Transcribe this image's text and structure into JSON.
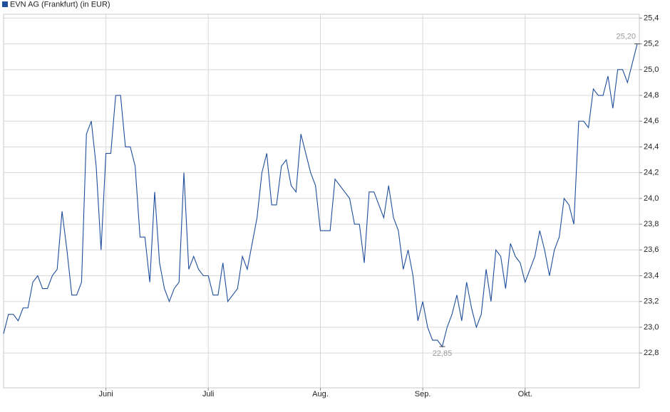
{
  "chart_data": {
    "type": "line",
    "series": [
      {
        "name": "EVN AG (Frankfurt) (in EUR)",
        "color": "#1f4e9c",
        "values": [
          22.95,
          23.1,
          23.1,
          23.05,
          23.15,
          23.15,
          23.35,
          23.4,
          23.3,
          23.3,
          23.4,
          23.45,
          23.9,
          23.6,
          23.25,
          23.25,
          23.35,
          24.5,
          24.6,
          24.25,
          23.6,
          24.35,
          24.35,
          24.8,
          24.8,
          24.4,
          24.4,
          24.25,
          23.7,
          23.7,
          23.35,
          24.05,
          23.5,
          23.3,
          23.2,
          23.3,
          23.35,
          24.2,
          23.45,
          23.55,
          23.45,
          23.4,
          23.4,
          23.25,
          23.25,
          23.5,
          23.2,
          23.25,
          23.3,
          23.55,
          23.45,
          23.65,
          23.85,
          24.2,
          24.35,
          23.95,
          23.95,
          24.25,
          24.3,
          24.1,
          24.05,
          24.5,
          24.35,
          24.2,
          24.1,
          23.75,
          23.75,
          23.75,
          24.15,
          24.1,
          24.05,
          24.0,
          23.8,
          23.8,
          23.5,
          24.05,
          24.05,
          23.95,
          23.85,
          24.1,
          23.85,
          23.75,
          23.45,
          23.6,
          23.4,
          23.05,
          23.2,
          23.0,
          22.9,
          22.9,
          22.85,
          23.0,
          23.1,
          23.25,
          23.05,
          23.35,
          23.15,
          23.0,
          23.1,
          23.45,
          23.2,
          23.6,
          23.55,
          23.3,
          23.65,
          23.55,
          23.5,
          23.35,
          23.45,
          23.55,
          23.75,
          23.6,
          23.4,
          23.6,
          23.7,
          24.0,
          23.95,
          23.8,
          24.6,
          24.6,
          24.55,
          24.85,
          24.8,
          24.8,
          24.95,
          24.7,
          25.0,
          25.0,
          24.9,
          25.05,
          25.2
        ]
      }
    ],
    "xlim": [
      0,
      130
    ],
    "xticks": [
      {
        "value": 21,
        "label": "Juni"
      },
      {
        "value": 42,
        "label": "Juli"
      },
      {
        "value": 65,
        "label": "Aug."
      },
      {
        "value": 86,
        "label": "Sep."
      },
      {
        "value": 107,
        "label": "Okt."
      }
    ],
    "ylim": [
      22.53,
      25.43
    ],
    "yticks": [
      {
        "value": 22.8,
        "label": "22,8"
      },
      {
        "value": 23.0,
        "label": "23,0"
      },
      {
        "value": 23.2,
        "label": "23,2"
      },
      {
        "value": 23.4,
        "label": "23,4"
      },
      {
        "value": 23.6,
        "label": "23,6"
      },
      {
        "value": 23.8,
        "label": "23,8"
      },
      {
        "value": 24.0,
        "label": "24,0"
      },
      {
        "value": 24.2,
        "label": "24,2"
      },
      {
        "value": 24.4,
        "label": "24,4"
      },
      {
        "value": 24.6,
        "label": "24,6"
      },
      {
        "value": 24.8,
        "label": "24,8"
      },
      {
        "value": 25.0,
        "label": "25,0"
      },
      {
        "value": 25.2,
        "label": "25,2"
      },
      {
        "value": 25.4,
        "label": "25,4"
      }
    ],
    "grid": true,
    "annotations": [
      {
        "value": 25.2,
        "label": "25,20"
      },
      {
        "value": 22.85,
        "label": "22,85"
      }
    ]
  }
}
